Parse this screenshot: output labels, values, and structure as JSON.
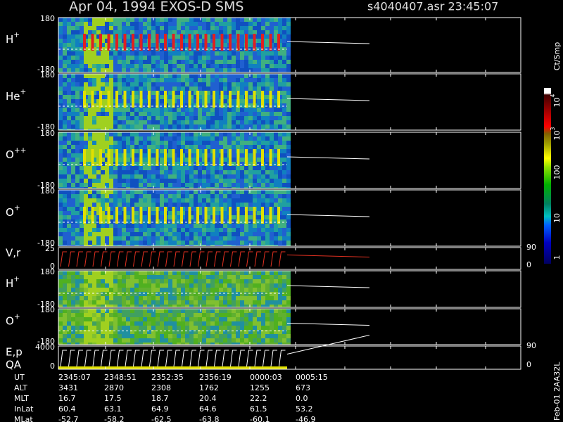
{
  "header": {
    "title": "Apr 04, 1994    EXOS-D SMS",
    "file": "s4040407.asr  23:45:07"
  },
  "panels": [
    {
      "label": {
        "base": "H",
        "sup": "+"
      },
      "left_ticks": [
        "180",
        "-180"
      ]
    },
    {
      "label": {
        "base": "He",
        "sup": "+"
      },
      "left_ticks": [
        "180",
        "-180"
      ]
    },
    {
      "label": {
        "base": "O",
        "sup": "++"
      },
      "left_ticks": [
        "180",
        "-180"
      ]
    },
    {
      "label": {
        "base": "O",
        "sup": "+"
      },
      "left_ticks": [
        "180",
        "-180"
      ]
    },
    {
      "label": {
        "base": "V,r",
        "sup": ""
      },
      "left_ticks": [
        "25",
        "0"
      ],
      "right_ticks": [
        "90",
        "0"
      ]
    },
    {
      "label": {
        "base": "H",
        "sup": "+"
      },
      "left_ticks": [
        "180",
        "-180"
      ]
    },
    {
      "label": {
        "base": "O",
        "sup": "+"
      },
      "left_ticks": [
        "180",
        "-180"
      ]
    },
    {
      "label": {
        "base": "E,p",
        "sup": "",
        "second": "QA"
      },
      "left_ticks": [
        "4000",
        "0"
      ],
      "right_ticks": [
        "90",
        "0"
      ]
    }
  ],
  "colorbar": {
    "unit": "Ct/Smp",
    "labels": [
      {
        "base": "10",
        "sup": "4"
      },
      {
        "base": "10",
        "sup": "3"
      },
      {
        "base": "100",
        "sup": ""
      },
      {
        "base": "10",
        "sup": ""
      },
      {
        "base": "1",
        "sup": ""
      }
    ]
  },
  "footer": {
    "rows": [
      [
        "UT",
        "2345:07",
        "2348:51",
        "2352:35",
        "2356:19",
        "0000:03",
        "0005:15"
      ],
      [
        "ALT",
        "3431",
        "2870",
        "2308",
        "1762",
        "1255",
        "673"
      ],
      [
        "MLT",
        "16.7",
        "17.5",
        "18.7",
        "20.4",
        "22.2",
        "0.0"
      ],
      [
        "InLat",
        "60.4",
        "63.1",
        "64.9",
        "64.6",
        "61.5",
        "53.2"
      ],
      [
        "MLat",
        "-52.7",
        "-58.2",
        "-62.5",
        "-63.8",
        "-60.1",
        "-46.9"
      ]
    ],
    "stamp": "Feb-01 2AA32L"
  }
}
